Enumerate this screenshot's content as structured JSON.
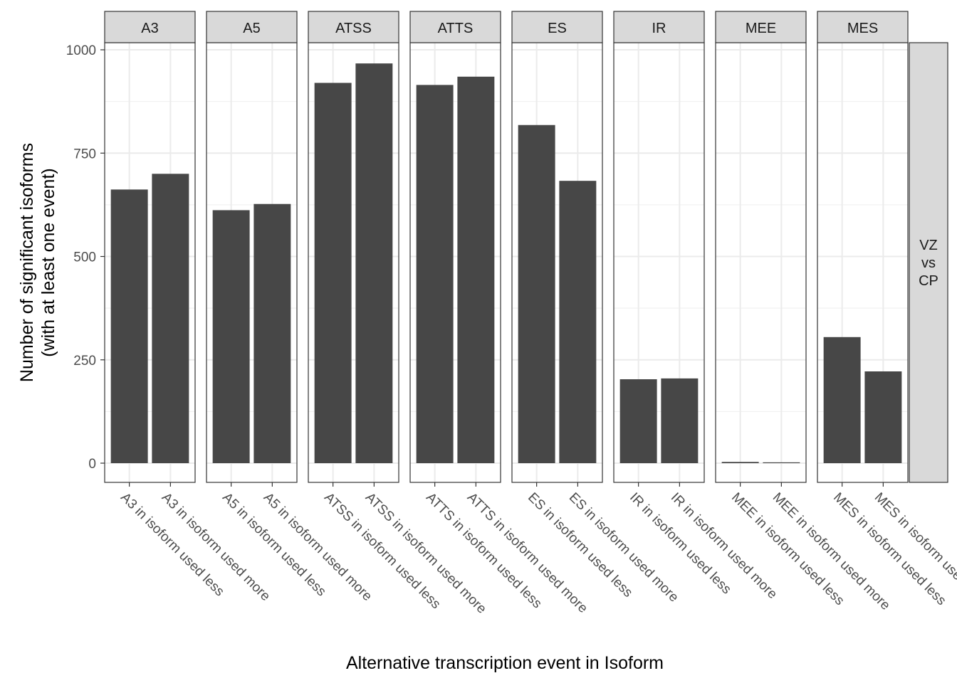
{
  "chart_data": {
    "type": "bar",
    "facet_by": "event",
    "row_strip_label": "VZ\nvs\nCP",
    "xlabel": "Alternative transcription event in Isoform",
    "ylabel": "Number of significant isoforms\n(with at least one event)",
    "ylim": [
      -40,
      1060
    ],
    "yticks": [
      0,
      250,
      500,
      750,
      1000
    ],
    "grid": true,
    "colors": {
      "bar": "#474747",
      "strip": "#d9d9d9",
      "grid": "#ebebeb",
      "panel_border": "#333333"
    },
    "facets": [
      {
        "name": "A3",
        "categories": [
          "A3 in isoform used less",
          "A3 in isoform used more"
        ],
        "values": [
          662,
          700
        ]
      },
      {
        "name": "A5",
        "categories": [
          "A5 in isoform used less",
          "A5 in isoform used more"
        ],
        "values": [
          612,
          627
        ]
      },
      {
        "name": "ATSS",
        "categories": [
          "ATSS in isoform used less",
          "ATSS in isoform used more"
        ],
        "values": [
          920,
          967
        ]
      },
      {
        "name": "ATTS",
        "categories": [
          "ATTS in isoform used less",
          "ATTS in isoform used more"
        ],
        "values": [
          915,
          935
        ]
      },
      {
        "name": "ES",
        "categories": [
          "ES in isoform used less",
          "ES in isoform used more"
        ],
        "values": [
          818,
          683
        ]
      },
      {
        "name": "IR",
        "categories": [
          "IR in isoform used less",
          "IR in isoform used more"
        ],
        "values": [
          203,
          205
        ]
      },
      {
        "name": "MEE",
        "categories": [
          "MEE in isoform used less",
          "MEE in isoform used more"
        ],
        "values": [
          3,
          2
        ]
      },
      {
        "name": "MES",
        "categories": [
          "MES in isoform used less",
          "MES in isoform used more"
        ],
        "values": [
          305,
          222
        ]
      }
    ]
  }
}
